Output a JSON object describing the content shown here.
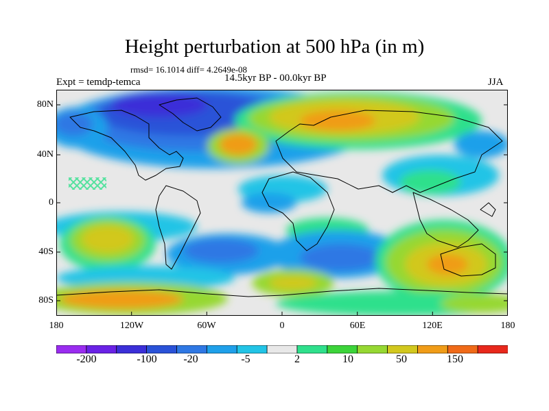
{
  "title": "Height perturbation at 500 hPa (in m)",
  "stats": "rmsd= 16.1014 diff= 4.2649e-08",
  "experiment": "Expt = temdp-temca",
  "period": "14.5kyr BP - 00.0kyr BP",
  "season": "JJA",
  "lat_ticks": [
    "80N",
    "40N",
    "0",
    "40S",
    "80S"
  ],
  "lon_ticks": [
    "180",
    "120W",
    "60W",
    "0",
    "60E",
    "120E",
    "180"
  ],
  "colorbar": {
    "colors": [
      "#9a2cf0",
      "#6a22e6",
      "#3b2fd8",
      "#2a52d8",
      "#2f78e4",
      "#1fa0ea",
      "#22c4e6",
      "#e8e8e8",
      "#2fe08c",
      "#3cd43a",
      "#96d832",
      "#d2c81e",
      "#f09c18",
      "#f06a18",
      "#e8281c"
    ],
    "tick_labels": [
      "-200",
      "-100",
      "-20",
      "-5",
      "2",
      "10",
      "50",
      "150"
    ]
  }
}
